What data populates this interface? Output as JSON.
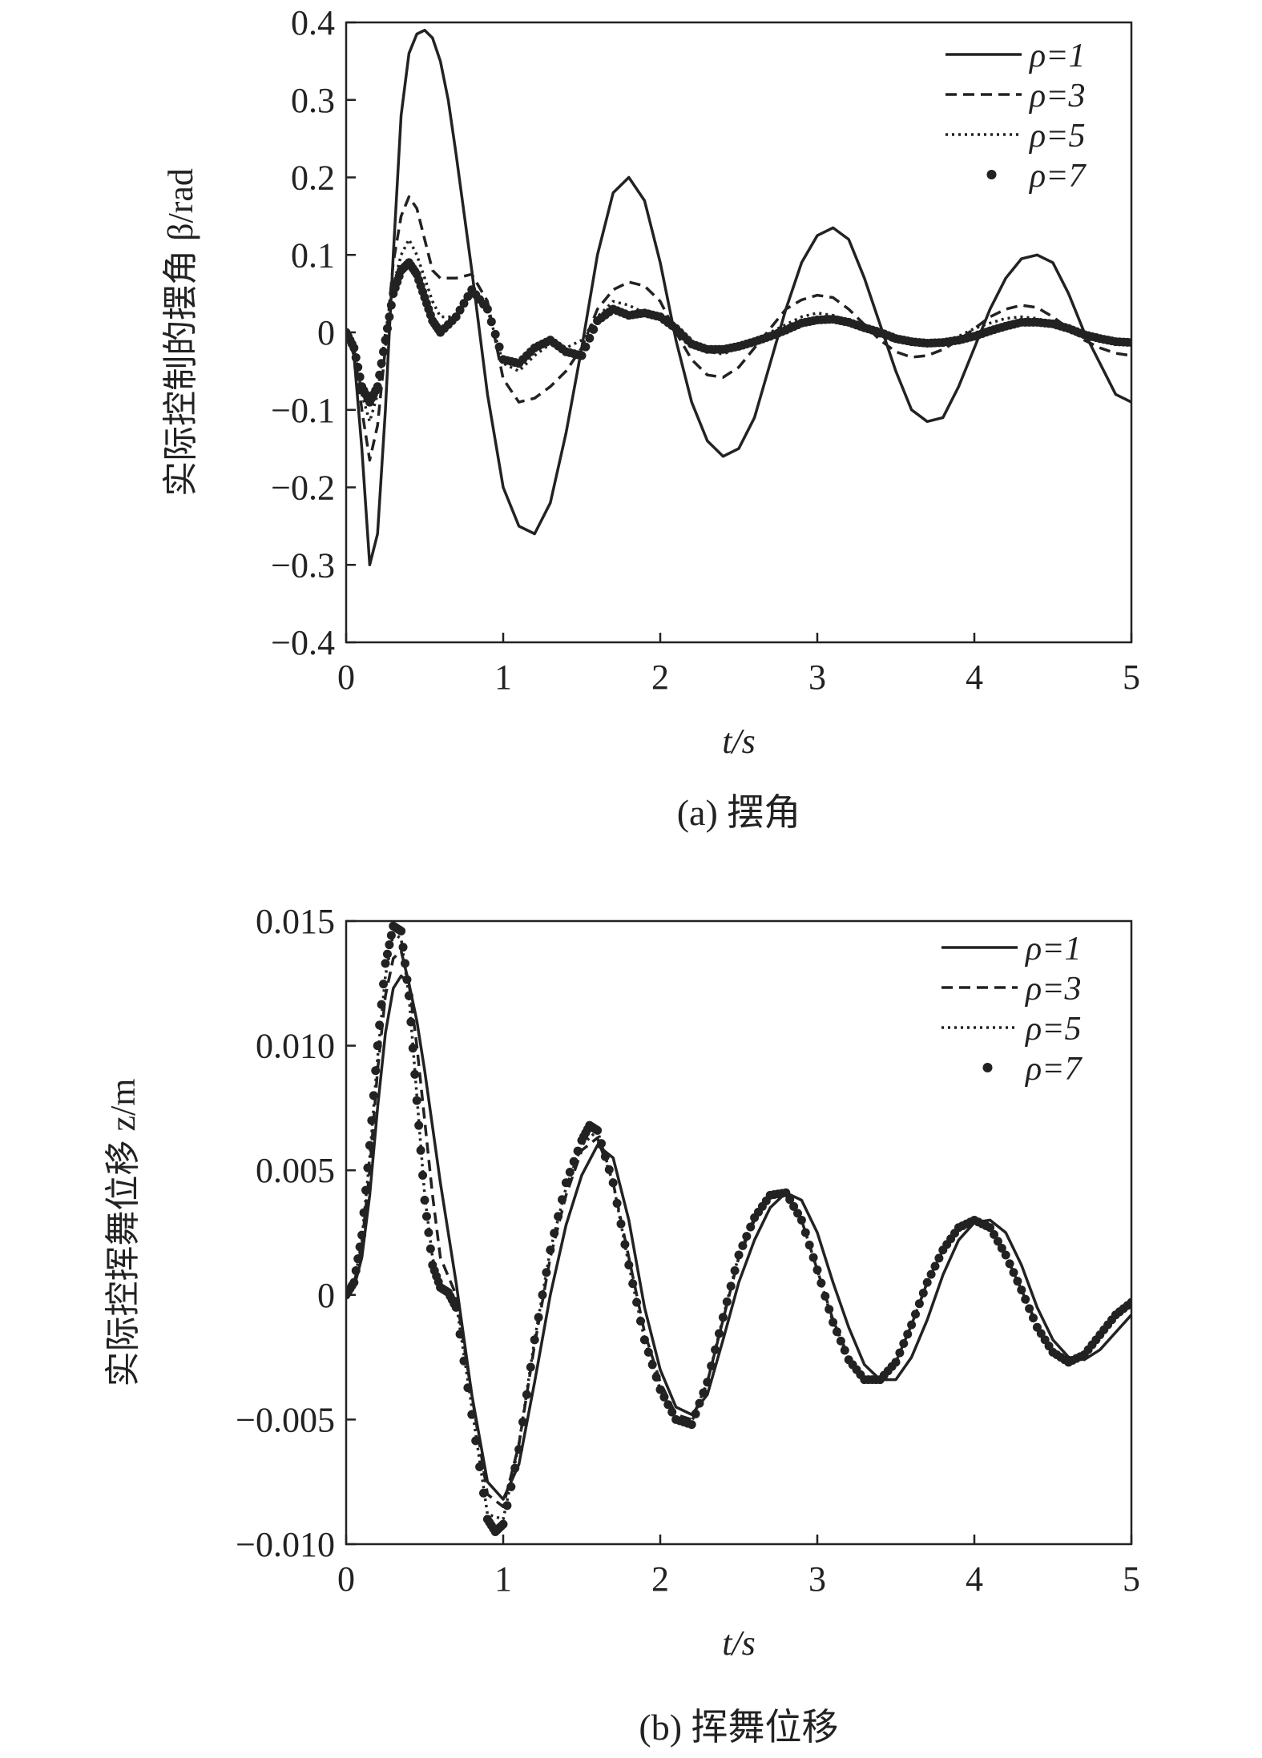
{
  "chart_data": [
    {
      "type": "line",
      "caption": "(a) 摆角",
      "xlabel": "t/s",
      "ylabel": "实际控制的摆角 β/rad",
      "xlim": [
        0,
        5
      ],
      "ylim": [
        -0.4,
        0.4
      ],
      "xticks": [
        0,
        1,
        2,
        3,
        4,
        5
      ],
      "xtick_labels": [
        "0",
        "1",
        "2",
        "3",
        "4",
        "5"
      ],
      "yticks": [
        -0.4,
        -0.3,
        -0.2,
        -0.1,
        0,
        0.1,
        0.2,
        0.3,
        0.4
      ],
      "ytick_labels": [
        "−0.4",
        "−0.3",
        "−0.2",
        "−0.1",
        "0",
        "0.1",
        "0.2",
        "0.3",
        "0.4"
      ],
      "grid": false,
      "legend_position": "top-right",
      "series": [
        {
          "name": "ρ=1",
          "style": "solid",
          "x": [
            0,
            0.05,
            0.1,
            0.15,
            0.2,
            0.25,
            0.3,
            0.35,
            0.4,
            0.45,
            0.5,
            0.55,
            0.6,
            0.65,
            0.7,
            0.8,
            0.9,
            1.0,
            1.1,
            1.2,
            1.3,
            1.4,
            1.5,
            1.6,
            1.7,
            1.8,
            1.9,
            2.0,
            2.1,
            2.2,
            2.3,
            2.4,
            2.5,
            2.6,
            2.7,
            2.8,
            2.9,
            3.0,
            3.1,
            3.2,
            3.3,
            3.4,
            3.5,
            3.6,
            3.7,
            3.8,
            3.9,
            4.0,
            4.1,
            4.2,
            4.3,
            4.4,
            4.5,
            4.6,
            4.7,
            4.8,
            4.9,
            5.0
          ],
          "y": [
            0,
            -0.03,
            -0.15,
            -0.3,
            -0.26,
            -0.1,
            0.1,
            0.28,
            0.36,
            0.385,
            0.39,
            0.38,
            0.35,
            0.3,
            0.23,
            0.08,
            -0.08,
            -0.2,
            -0.25,
            -0.26,
            -0.22,
            -0.13,
            -0.02,
            0.1,
            0.18,
            0.2,
            0.17,
            0.09,
            -0.01,
            -0.09,
            -0.14,
            -0.16,
            -0.15,
            -0.11,
            -0.04,
            0.03,
            0.09,
            0.125,
            0.135,
            0.12,
            0.07,
            0.01,
            -0.05,
            -0.1,
            -0.115,
            -0.11,
            -0.07,
            -0.02,
            0.03,
            0.07,
            0.095,
            0.1,
            0.09,
            0.05,
            0.0,
            -0.04,
            -0.08,
            -0.09
          ]
        },
        {
          "name": "ρ=3",
          "style": "dashed",
          "x": [
            0,
            0.05,
            0.1,
            0.15,
            0.2,
            0.25,
            0.3,
            0.35,
            0.4,
            0.45,
            0.5,
            0.55,
            0.6,
            0.7,
            0.8,
            0.9,
            1.0,
            1.1,
            1.2,
            1.3,
            1.4,
            1.5,
            1.6,
            1.7,
            1.8,
            1.9,
            2.0,
            2.1,
            2.2,
            2.3,
            2.4,
            2.5,
            2.6,
            2.7,
            2.8,
            2.9,
            3.0,
            3.1,
            3.2,
            3.3,
            3.4,
            3.5,
            3.6,
            3.7,
            3.8,
            3.9,
            4.0,
            4.1,
            4.2,
            4.3,
            4.4,
            4.5,
            4.6,
            4.7,
            4.8,
            4.9,
            5.0
          ],
          "y": [
            0,
            -0.02,
            -0.1,
            -0.165,
            -0.12,
            -0.02,
            0.09,
            0.15,
            0.175,
            0.16,
            0.12,
            0.08,
            0.07,
            0.07,
            0.075,
            0.04,
            -0.06,
            -0.09,
            -0.085,
            -0.07,
            -0.05,
            -0.02,
            0.03,
            0.055,
            0.065,
            0.06,
            0.04,
            0.0,
            -0.035,
            -0.055,
            -0.058,
            -0.045,
            -0.02,
            0.005,
            0.03,
            0.042,
            0.048,
            0.045,
            0.03,
            0.01,
            -0.01,
            -0.025,
            -0.032,
            -0.03,
            -0.022,
            -0.01,
            0.005,
            0.02,
            0.03,
            0.035,
            0.032,
            0.02,
            0.005,
            -0.01,
            -0.02,
            -0.027,
            -0.03
          ]
        },
        {
          "name": "ρ=5",
          "style": "dotted",
          "x": [
            0,
            0.05,
            0.1,
            0.15,
            0.2,
            0.25,
            0.3,
            0.35,
            0.4,
            0.45,
            0.5,
            0.55,
            0.6,
            0.7,
            0.8,
            0.9,
            1.0,
            1.1,
            1.2,
            1.3,
            1.4,
            1.5,
            1.6,
            1.7,
            1.8,
            1.9,
            2.0,
            2.1,
            2.2,
            2.3,
            2.4,
            2.5,
            2.6,
            2.7,
            2.8,
            2.9,
            3.0,
            3.1,
            3.2,
            3.3,
            3.4,
            3.5,
            3.6,
            3.7,
            3.8,
            3.9,
            4.0,
            4.1,
            4.2,
            4.3,
            4.4,
            4.5,
            4.6,
            4.7,
            4.8,
            4.9,
            5.0
          ],
          "y": [
            0,
            -0.02,
            -0.08,
            -0.115,
            -0.08,
            0.0,
            0.06,
            0.1,
            0.12,
            0.1,
            0.07,
            0.04,
            0.02,
            0.02,
            0.06,
            0.03,
            -0.04,
            -0.05,
            -0.03,
            -0.015,
            -0.02,
            -0.01,
            0.02,
            0.04,
            0.035,
            0.025,
            0.02,
            0.0,
            -0.015,
            -0.025,
            -0.028,
            -0.02,
            -0.01,
            0.0,
            0.01,
            0.02,
            0.025,
            0.022,
            0.015,
            0.005,
            -0.005,
            -0.012,
            -0.015,
            -0.015,
            -0.012,
            -0.005,
            0.005,
            0.012,
            0.018,
            0.02,
            0.018,
            0.012,
            0.005,
            -0.003,
            -0.01,
            -0.013,
            -0.015
          ]
        },
        {
          "name": "ρ=7",
          "style": "markers",
          "x": [
            0,
            0.05,
            0.1,
            0.15,
            0.2,
            0.25,
            0.3,
            0.35,
            0.4,
            0.45,
            0.5,
            0.55,
            0.6,
            0.7,
            0.8,
            0.9,
            1.0,
            1.1,
            1.2,
            1.3,
            1.4,
            1.5,
            1.6,
            1.7,
            1.8,
            1.9,
            2.0,
            2.1,
            2.2,
            2.3,
            2.4,
            2.5,
            2.6,
            2.7,
            2.8,
            2.9,
            3.0,
            3.1,
            3.2,
            3.3,
            3.4,
            3.5,
            3.6,
            3.7,
            3.8,
            3.9,
            4.0,
            4.1,
            4.2,
            4.3,
            4.4,
            4.5,
            4.6,
            4.7,
            4.8,
            4.9,
            5.0
          ],
          "y": [
            0,
            -0.02,
            -0.07,
            -0.09,
            -0.07,
            -0.01,
            0.05,
            0.08,
            0.09,
            0.075,
            0.045,
            0.015,
            0.0,
            0.02,
            0.055,
            0.03,
            -0.035,
            -0.04,
            -0.02,
            -0.01,
            -0.025,
            -0.03,
            0.015,
            0.03,
            0.022,
            0.025,
            0.02,
            0.005,
            -0.015,
            -0.022,
            -0.022,
            -0.018,
            -0.012,
            -0.005,
            0.003,
            0.012,
            0.016,
            0.017,
            0.013,
            0.006,
            0.0,
            -0.008,
            -0.012,
            -0.014,
            -0.013,
            -0.01,
            -0.005,
            0.002,
            0.008,
            0.013,
            0.013,
            0.011,
            0.005,
            -0.003,
            -0.008,
            -0.012,
            -0.013
          ]
        }
      ]
    },
    {
      "type": "line",
      "caption": "(b) 挥舞位移",
      "xlabel": "t/s",
      "ylabel": "实际控挥舞位移 z/m",
      "xlim": [
        0,
        5
      ],
      "ylim": [
        -0.01,
        0.015
      ],
      "xticks": [
        0,
        1,
        2,
        3,
        4,
        5
      ],
      "xtick_labels": [
        "0",
        "1",
        "2",
        "3",
        "4",
        "5"
      ],
      "yticks": [
        -0.01,
        -0.005,
        0,
        0.005,
        0.01,
        0.015
      ],
      "ytick_labels": [
        "−0.010",
        "−0.005",
        "0",
        "0.005",
        "0.010",
        "0.015"
      ],
      "grid": false,
      "legend_position": "top-right",
      "series": [
        {
          "name": "ρ=1",
          "style": "solid",
          "x": [
            0,
            0.05,
            0.1,
            0.15,
            0.2,
            0.25,
            0.3,
            0.35,
            0.4,
            0.45,
            0.5,
            0.6,
            0.7,
            0.8,
            0.9,
            1.0,
            1.1,
            1.2,
            1.3,
            1.4,
            1.5,
            1.6,
            1.7,
            1.8,
            1.9,
            2.0,
            2.1,
            2.2,
            2.3,
            2.4,
            2.5,
            2.6,
            2.7,
            2.8,
            2.9,
            3.0,
            3.1,
            3.2,
            3.3,
            3.4,
            3.5,
            3.6,
            3.7,
            3.8,
            3.9,
            4.0,
            4.1,
            4.2,
            4.3,
            4.4,
            4.5,
            4.6,
            4.7,
            4.8,
            4.9,
            5.0
          ],
          "y": [
            0,
            0.0003,
            0.0015,
            0.004,
            0.0075,
            0.0105,
            0.0123,
            0.0128,
            0.0125,
            0.011,
            0.009,
            0.0045,
            0.0005,
            -0.004,
            -0.0075,
            -0.0082,
            -0.0068,
            -0.0035,
            0.0,
            0.0028,
            0.0048,
            0.006,
            0.0055,
            0.003,
            -0.0005,
            -0.003,
            -0.0045,
            -0.0048,
            -0.004,
            -0.0018,
            0.0005,
            0.0022,
            0.0035,
            0.0041,
            0.0038,
            0.0025,
            0.0005,
            -0.0013,
            -0.0028,
            -0.0034,
            -0.0034,
            -0.0025,
            -0.001,
            0.0008,
            0.0022,
            0.0029,
            0.003,
            0.0025,
            0.0012,
            -0.0005,
            -0.0018,
            -0.0025,
            -0.0026,
            -0.0022,
            -0.0015,
            -0.0008
          ]
        },
        {
          "name": "ρ=3",
          "style": "dashed",
          "x": [
            0,
            0.05,
            0.1,
            0.15,
            0.2,
            0.25,
            0.3,
            0.35,
            0.4,
            0.45,
            0.5,
            0.55,
            0.6,
            0.7,
            0.8,
            0.9,
            1.0,
            1.1,
            1.2,
            1.3,
            1.4,
            1.5,
            1.6,
            1.7,
            1.8,
            1.9,
            2.0,
            2.1,
            2.2,
            2.3,
            2.4,
            2.5,
            2.6,
            2.7,
            2.8,
            2.9,
            3.0,
            3.1,
            3.2,
            3.3,
            3.4,
            3.5,
            3.6,
            3.7,
            3.8,
            3.9,
            4.0,
            4.1,
            4.2,
            4.3,
            4.4,
            4.5,
            4.6,
            4.7,
            4.8,
            4.9,
            5.0
          ],
          "y": [
            0,
            0.0004,
            0.002,
            0.005,
            0.009,
            0.012,
            0.0135,
            0.0138,
            0.0125,
            0.01,
            0.007,
            0.004,
            0.0015,
            0.0,
            -0.004,
            -0.008,
            -0.0085,
            -0.006,
            -0.002,
            0.0015,
            0.004,
            0.0058,
            0.0063,
            0.0045,
            0.0015,
            -0.0015,
            -0.0035,
            -0.0048,
            -0.005,
            -0.0035,
            -0.001,
            0.0015,
            0.003,
            0.0039,
            0.004,
            0.003,
            0.001,
            -0.001,
            -0.0025,
            -0.0033,
            -0.0034,
            -0.0027,
            -0.0012,
            0.0005,
            0.0018,
            0.0026,
            0.0029,
            0.0027,
            0.0016,
            0.0002,
            -0.0012,
            -0.0022,
            -0.0026,
            -0.0024,
            -0.0016,
            -0.0008,
            -0.0004
          ]
        },
        {
          "name": "ρ=5",
          "style": "dotted",
          "x": [
            0,
            0.05,
            0.1,
            0.15,
            0.2,
            0.25,
            0.3,
            0.35,
            0.4,
            0.45,
            0.5,
            0.55,
            0.6,
            0.7,
            0.8,
            0.9,
            1.0,
            1.1,
            1.2,
            1.3,
            1.4,
            1.5,
            1.6,
            1.7,
            1.8,
            1.9,
            2.0,
            2.1,
            2.2,
            2.3,
            2.4,
            2.5,
            2.6,
            2.7,
            2.8,
            2.9,
            3.0,
            3.1,
            3.2,
            3.3,
            3.4,
            3.5,
            3.6,
            3.7,
            3.8,
            3.9,
            4.0,
            4.1,
            4.2,
            4.3,
            4.4,
            4.5,
            4.6,
            4.7,
            4.8,
            4.9,
            5.0
          ],
          "y": [
            0,
            0.0004,
            0.0022,
            0.0055,
            0.0095,
            0.0128,
            0.0145,
            0.0143,
            0.012,
            0.008,
            0.004,
            0.0015,
            0.0002,
            -0.0003,
            -0.0045,
            -0.0088,
            -0.009,
            -0.006,
            -0.0018,
            0.0018,
            0.0043,
            0.006,
            0.0066,
            0.0045,
            0.0012,
            -0.0018,
            -0.0038,
            -0.005,
            -0.0051,
            -0.0035,
            -0.0009,
            0.0016,
            0.0031,
            0.004,
            0.004,
            0.003,
            0.001,
            -0.0011,
            -0.0026,
            -0.0034,
            -0.0034,
            -0.0027,
            -0.0012,
            0.0005,
            0.0018,
            0.0027,
            0.003,
            0.0027,
            0.0016,
            0.0002,
            -0.0013,
            -0.0023,
            -0.0027,
            -0.0024,
            -0.0016,
            -0.0008,
            -0.0003
          ]
        },
        {
          "name": "ρ=7",
          "style": "markers",
          "x": [
            0,
            0.05,
            0.1,
            0.15,
            0.2,
            0.25,
            0.3,
            0.35,
            0.4,
            0.45,
            0.5,
            0.55,
            0.6,
            0.65,
            0.7,
            0.8,
            0.9,
            0.95,
            1.0,
            1.1,
            1.2,
            1.3,
            1.4,
            1.5,
            1.55,
            1.6,
            1.7,
            1.8,
            1.9,
            2.0,
            2.1,
            2.2,
            2.3,
            2.4,
            2.5,
            2.6,
            2.7,
            2.8,
            2.9,
            3.0,
            3.1,
            3.2,
            3.3,
            3.4,
            3.5,
            3.6,
            3.7,
            3.8,
            3.9,
            4.0,
            4.1,
            4.2,
            4.3,
            4.4,
            4.5,
            4.6,
            4.7,
            4.8,
            4.9,
            5.0
          ],
          "y": [
            0,
            0.0005,
            0.0024,
            0.006,
            0.01,
            0.0133,
            0.0148,
            0.0146,
            0.012,
            0.0078,
            0.0038,
            0.0012,
            0.0003,
            0.0001,
            -0.0005,
            -0.0048,
            -0.009,
            -0.0095,
            -0.0092,
            -0.0062,
            -0.0018,
            0.0018,
            0.0045,
            0.0062,
            0.0068,
            0.0066,
            0.0045,
            0.0012,
            -0.0018,
            -0.0038,
            -0.005,
            -0.0052,
            -0.0035,
            -0.0009,
            0.0016,
            0.0031,
            0.004,
            0.0041,
            0.003,
            0.001,
            -0.0011,
            -0.0026,
            -0.0034,
            -0.0034,
            -0.0027,
            -0.0012,
            0.0005,
            0.0018,
            0.0027,
            0.003,
            0.0027,
            0.0016,
            0.0002,
            -0.0013,
            -0.0023,
            -0.0027,
            -0.0024,
            -0.0016,
            -0.0008,
            -0.0003
          ]
        }
      ]
    }
  ]
}
